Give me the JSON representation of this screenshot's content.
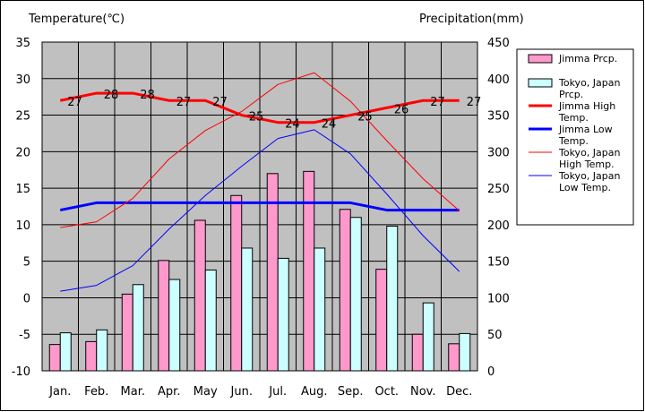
{
  "chart_data": {
    "type": "bar",
    "categories": [
      "Jan.",
      "Feb.",
      "Mar.",
      "Apr.",
      "May",
      "Jun.",
      "Jul.",
      "Aug.",
      "Sep.",
      "Oct.",
      "Nov.",
      "Dec."
    ],
    "left_axis": {
      "title": "Temperature(℃)",
      "min": -10,
      "max": 35,
      "step": 5,
      "ticks": [
        "35",
        "30",
        "25",
        "20",
        "15",
        "10",
        "5",
        "0",
        "-5",
        "-10"
      ]
    },
    "right_axis": {
      "title": "Precipitation(mm)",
      "min": 0,
      "max": 450,
      "step": 50,
      "ticks": [
        "450",
        "400",
        "350",
        "300",
        "250",
        "200",
        "150",
        "100",
        "50",
        "0"
      ]
    },
    "grid": true,
    "plot_background": "#c0c0c0",
    "legend_position": "right",
    "series": [
      {
        "name": "Jimma Prcp.",
        "kind": "bar",
        "axis": "right",
        "color": "#ff99cc",
        "values": [
          36,
          40,
          105,
          151,
          206,
          240,
          270,
          273,
          221,
          139,
          50,
          37
        ]
      },
      {
        "name": "Tokyo, Japan Prcp.",
        "kind": "bar",
        "axis": "right",
        "color": "#ccffff",
        "values": [
          52,
          56,
          118,
          125,
          138,
          168,
          154,
          168,
          210,
          198,
          93,
          51
        ]
      },
      {
        "name": "Jimma High Temp.",
        "kind": "line",
        "axis": "left",
        "color": "#ff0000",
        "width": 3,
        "values": [
          27,
          28,
          28,
          27,
          27,
          25,
          24,
          24,
          25,
          26,
          27,
          27
        ],
        "data_labels": [
          "27",
          "28",
          "28",
          "27",
          "27",
          "25",
          "24",
          "24",
          "25",
          "26",
          "27",
          "27"
        ]
      },
      {
        "name": "Jimma Low Temp.",
        "kind": "line",
        "axis": "left",
        "color": "#0000ff",
        "width": 3,
        "values": [
          12,
          13,
          13,
          13,
          13,
          13,
          13,
          13,
          13,
          12,
          12,
          12
        ]
      },
      {
        "name": "Tokyo, Japan High Temp.",
        "kind": "line",
        "axis": "left",
        "color": "#ff0000",
        "width": 1,
        "values": [
          9.6,
          10.4,
          13.6,
          19.0,
          22.9,
          25.5,
          29.2,
          30.8,
          26.9,
          21.5,
          16.3,
          11.9
        ]
      },
      {
        "name": "Tokyo, Japan Low Temp.",
        "kind": "line",
        "axis": "left",
        "color": "#0000ff",
        "width": 1,
        "values": [
          0.9,
          1.7,
          4.4,
          9.4,
          14.0,
          18.0,
          21.8,
          23.0,
          19.7,
          14.2,
          8.5,
          3.6
        ]
      }
    ],
    "legend": [
      {
        "label": "Jimma Prcp.",
        "kind": "box",
        "color": "#ff99cc",
        "width": 0
      },
      {
        "label": "Tokyo, Japan Prcp.",
        "kind": "box",
        "color": "#ccffff",
        "width": 0
      },
      {
        "label": "Jimma High Temp.",
        "kind": "line",
        "color": "#ff0000",
        "width": 3
      },
      {
        "label": "Jimma Low Temp.",
        "kind": "line",
        "color": "#0000ff",
        "width": 3
      },
      {
        "label": "Tokyo, Japan High Temp.",
        "kind": "line",
        "color": "#ff0000",
        "width": 1
      },
      {
        "label": "Tokyo, Japan Low Temp.",
        "kind": "line",
        "color": "#0000ff",
        "width": 1
      }
    ]
  }
}
